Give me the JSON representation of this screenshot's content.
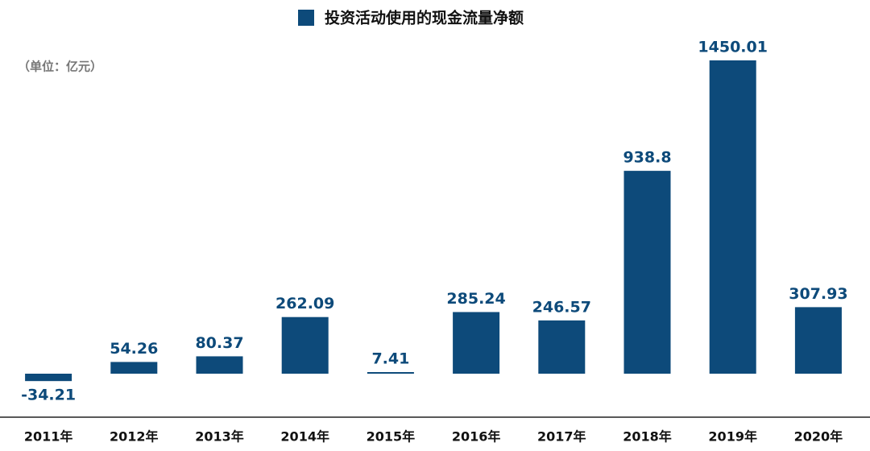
{
  "chart_data": {
    "type": "bar",
    "unit_note": "（单位：亿元）",
    "categories": [
      "2011年",
      "2012年",
      "2013年",
      "2014年",
      "2015年",
      "2016年",
      "2017年",
      "2018年",
      "2019年",
      "2020年"
    ],
    "series": [
      {
        "name": "投资活动使用的现金流量净额",
        "color": "#0d4a7a",
        "values": [
          -34.21,
          54.26,
          80.37,
          262.09,
          7.41,
          285.24,
          246.57,
          938.8,
          1450.01,
          307.93
        ]
      }
    ]
  }
}
